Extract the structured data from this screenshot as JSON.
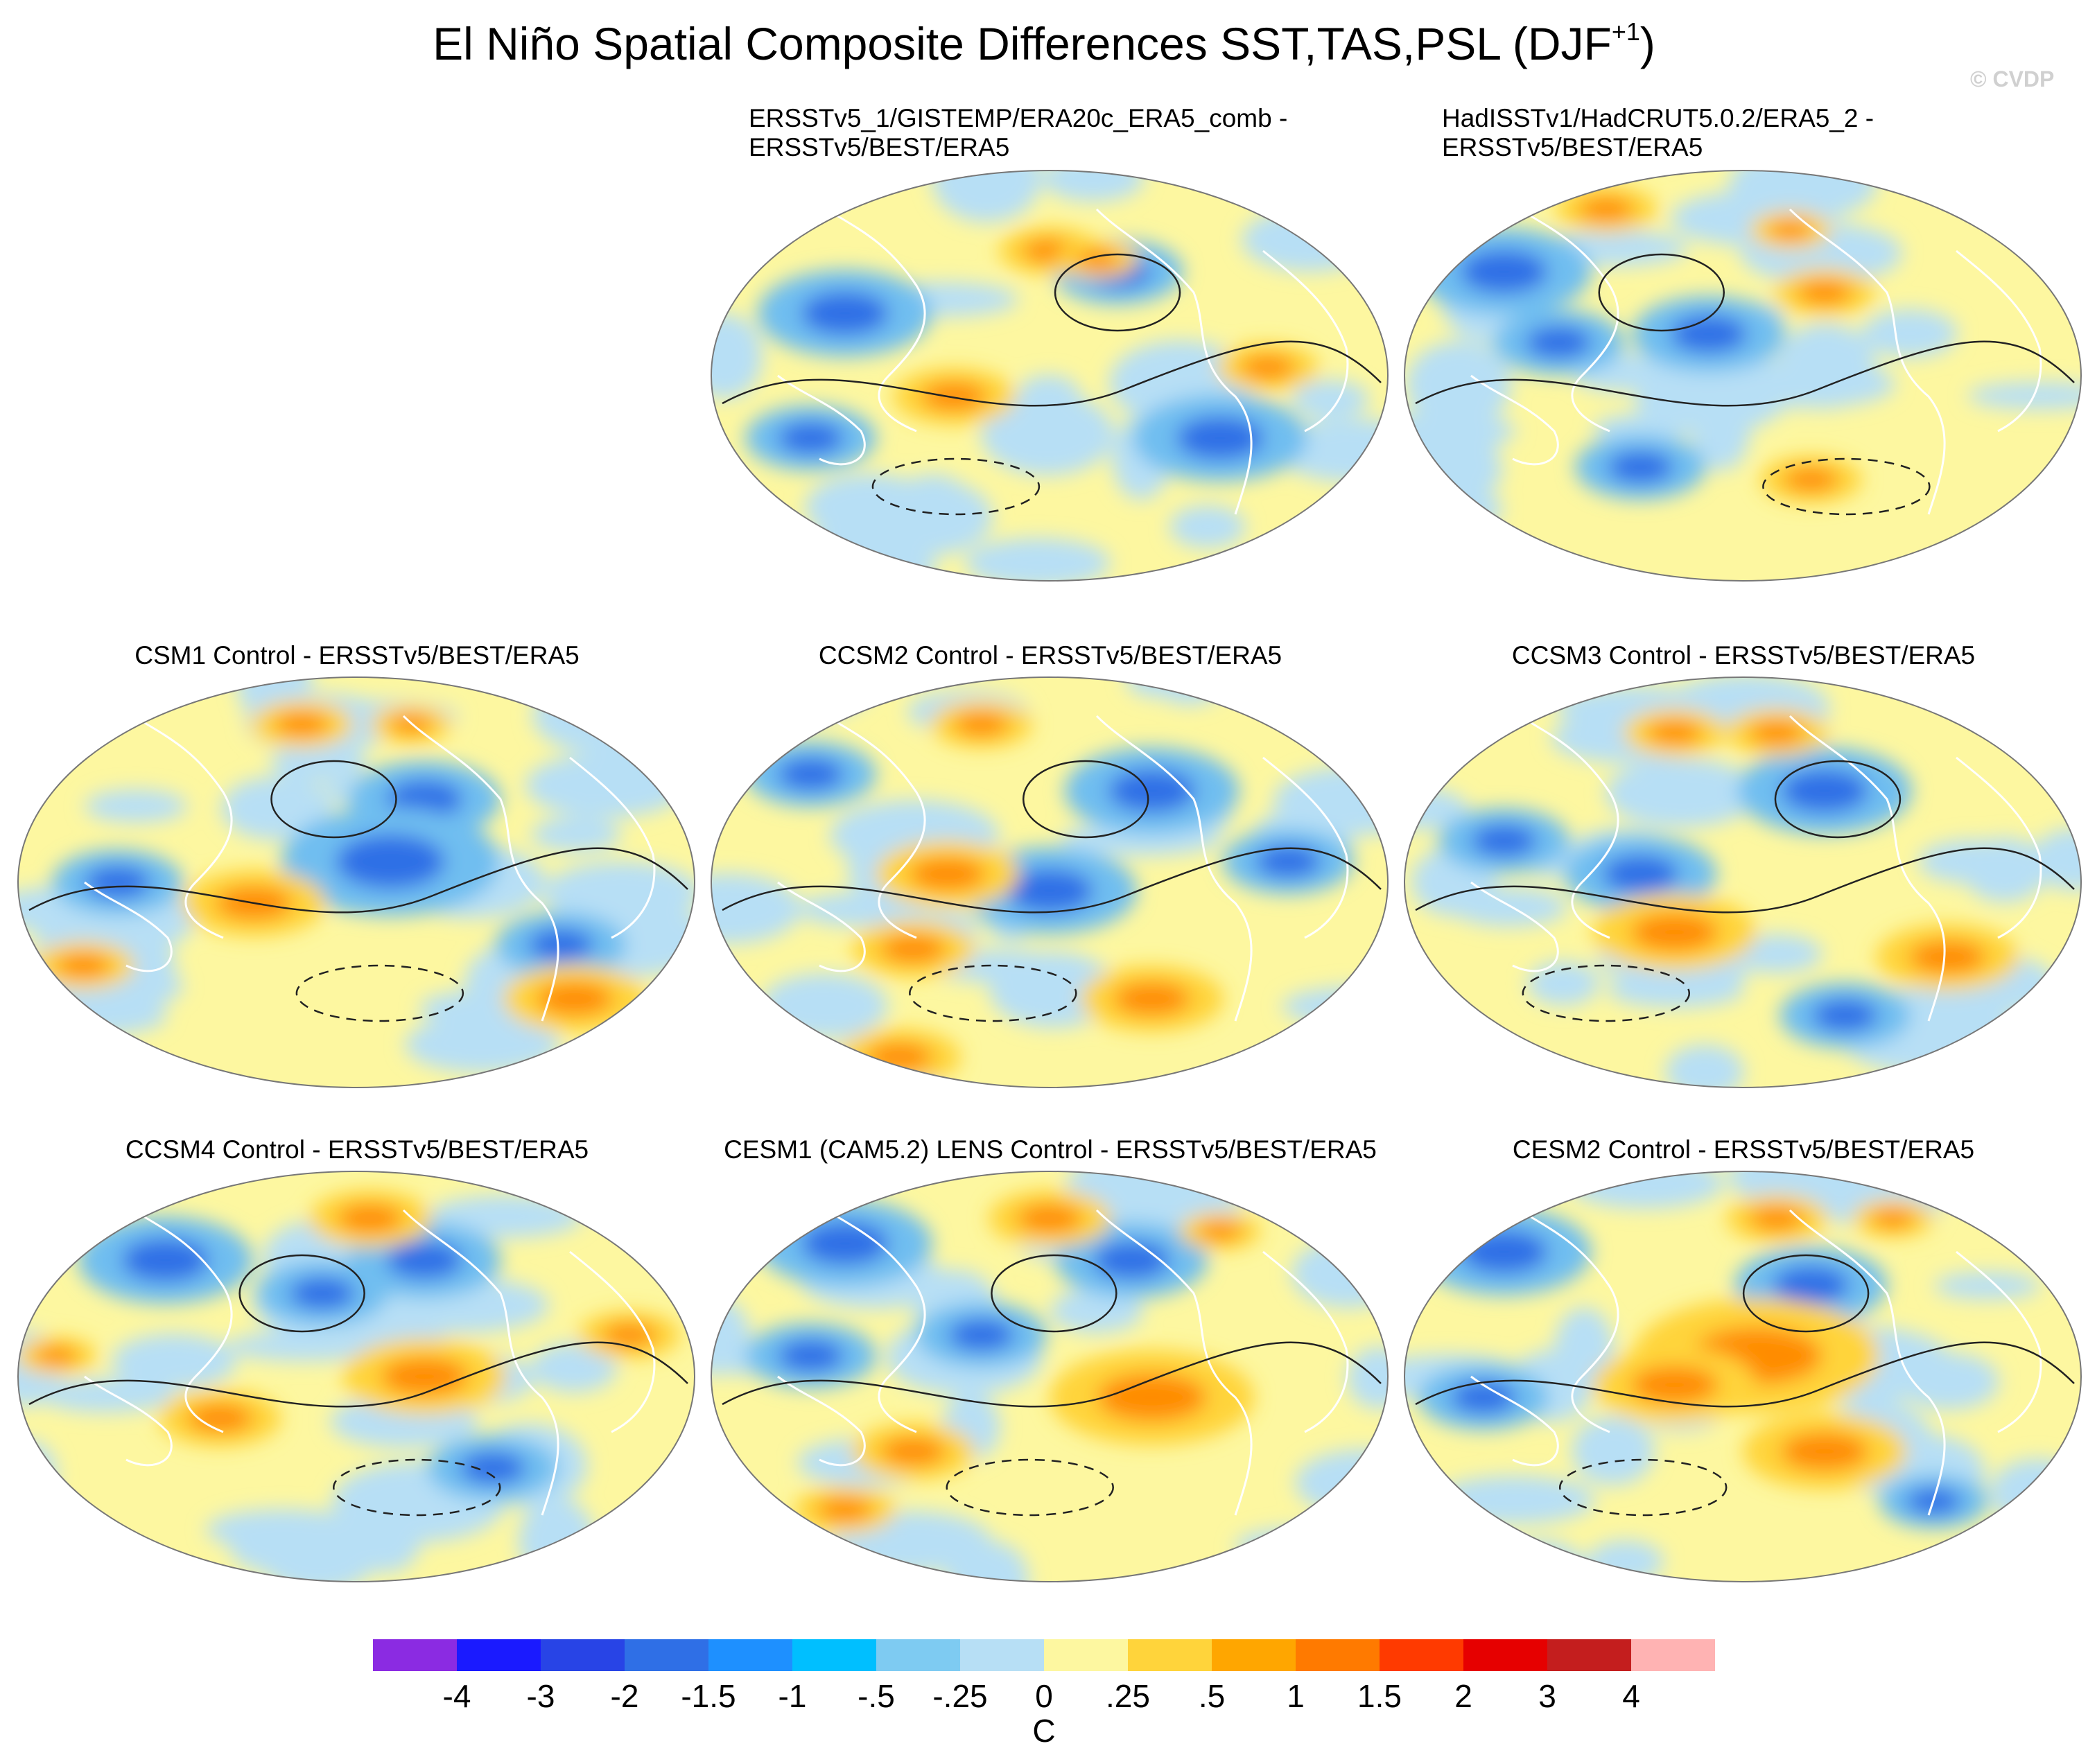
{
  "title": {
    "main": "El Niño Spatial Composite Differences SST,TAS,PSL (DJF",
    "superscript": "+1",
    "close": ")"
  },
  "watermark": "© CVDP",
  "panels": [
    {
      "id": "obs1",
      "title_line1": "ERSSTv5_1/GISTEMP/ERA20c_ERA5_comb -",
      "title_line2": "ERSSTv5/BEST/ERA5",
      "warm_spots": [
        [
          0.5,
          0.2,
          0.05
        ],
        [
          0.57,
          0.22,
          0.04
        ],
        [
          0.36,
          0.55,
          0.06
        ],
        [
          0.82,
          0.48,
          0.05
        ]
      ],
      "cool_spots": [
        [
          0.6,
          0.25,
          0.06
        ],
        [
          0.2,
          0.35,
          0.08
        ],
        [
          0.75,
          0.65,
          0.08
        ],
        [
          0.15,
          0.65,
          0.06
        ]
      ]
    },
    {
      "id": "obs2",
      "title_line1": "HadISSTv1/HadCRUT5.0.2/ERA5_2 -",
      "title_line2": "ERSSTv5/BEST/ERA5",
      "warm_spots": [
        [
          0.3,
          0.1,
          0.05
        ],
        [
          0.57,
          0.15,
          0.04
        ],
        [
          0.62,
          0.3,
          0.05
        ],
        [
          0.6,
          0.75,
          0.05
        ]
      ],
      "cool_spots": [
        [
          0.15,
          0.25,
          0.08
        ],
        [
          0.23,
          0.42,
          0.06
        ],
        [
          0.45,
          0.4,
          0.07
        ],
        [
          0.35,
          0.72,
          0.06
        ]
      ]
    },
    {
      "id": "csm1",
      "title_line1": "CSM1 Control - ERSSTv5/BEST/ERA5",
      "title_line2": "",
      "warm_spots": [
        [
          0.42,
          0.12,
          0.05
        ],
        [
          0.58,
          0.12,
          0.04
        ],
        [
          0.35,
          0.55,
          0.07
        ],
        [
          0.82,
          0.78,
          0.07
        ],
        [
          0.1,
          0.7,
          0.05
        ]
      ],
      "cool_spots": [
        [
          0.6,
          0.3,
          0.07
        ],
        [
          0.55,
          0.45,
          0.1
        ],
        [
          0.15,
          0.5,
          0.06
        ],
        [
          0.8,
          0.65,
          0.06
        ]
      ]
    },
    {
      "id": "ccsm2",
      "title_line1": "CCSM2 Control - ERSSTv5/BEST/ERA5",
      "title_line2": "",
      "warm_spots": [
        [
          0.35,
          0.48,
          0.07
        ],
        [
          0.3,
          0.66,
          0.06
        ],
        [
          0.4,
          0.12,
          0.05
        ],
        [
          0.65,
          0.78,
          0.07
        ],
        [
          0.28,
          0.92,
          0.06
        ]
      ],
      "cool_spots": [
        [
          0.65,
          0.28,
          0.08
        ],
        [
          0.15,
          0.24,
          0.06
        ],
        [
          0.5,
          0.52,
          0.08
        ],
        [
          0.85,
          0.45,
          0.06
        ]
      ]
    },
    {
      "id": "ccsm3",
      "title_line1": "CCSM3 Control - ERSSTv5/BEST/ERA5",
      "title_line2": "",
      "warm_spots": [
        [
          0.4,
          0.14,
          0.05
        ],
        [
          0.55,
          0.14,
          0.05
        ],
        [
          0.4,
          0.62,
          0.08
        ],
        [
          0.8,
          0.68,
          0.07
        ]
      ],
      "cool_spots": [
        [
          0.62,
          0.28,
          0.08
        ],
        [
          0.35,
          0.48,
          0.07
        ],
        [
          0.15,
          0.4,
          0.06
        ],
        [
          0.65,
          0.82,
          0.06
        ]
      ]
    },
    {
      "id": "ccsm4",
      "title_line1": "CCSM4 Control - ERSSTv5/BEST/ERA5",
      "title_line2": "",
      "warm_spots": [
        [
          0.52,
          0.12,
          0.06
        ],
        [
          0.3,
          0.6,
          0.06
        ],
        [
          0.6,
          0.5,
          0.08
        ],
        [
          0.9,
          0.4,
          0.05
        ],
        [
          0.06,
          0.45,
          0.04
        ]
      ],
      "cool_spots": [
        [
          0.6,
          0.22,
          0.07
        ],
        [
          0.22,
          0.22,
          0.08
        ],
        [
          0.45,
          0.3,
          0.06
        ],
        [
          0.7,
          0.72,
          0.06
        ]
      ]
    },
    {
      "id": "cesm1",
      "title_line1": "CESM1 (CAM5.2) LENS Control - ERSSTv5/BEST/ERA5",
      "title_line2": "",
      "warm_spots": [
        [
          0.65,
          0.55,
          0.1
        ],
        [
          0.3,
          0.68,
          0.06
        ],
        [
          0.5,
          0.12,
          0.06
        ],
        [
          0.75,
          0.15,
          0.04
        ],
        [
          0.2,
          0.82,
          0.05
        ]
      ],
      "cool_spots": [
        [
          0.2,
          0.18,
          0.08
        ],
        [
          0.62,
          0.22,
          0.07
        ],
        [
          0.15,
          0.45,
          0.06
        ],
        [
          0.4,
          0.4,
          0.06
        ]
      ]
    },
    {
      "id": "cesm2",
      "title_line1": "CESM2 Control - ERSSTv5/BEST/ERA5",
      "title_line2": "",
      "warm_spots": [
        [
          0.52,
          0.45,
          0.12
        ],
        [
          0.4,
          0.52,
          0.08
        ],
        [
          0.62,
          0.68,
          0.08
        ],
        [
          0.55,
          0.12,
          0.05
        ],
        [
          0.72,
          0.12,
          0.04
        ]
      ],
      "cool_spots": [
        [
          0.15,
          0.2,
          0.08
        ],
        [
          0.6,
          0.28,
          0.07
        ],
        [
          0.12,
          0.55,
          0.06
        ],
        [
          0.78,
          0.8,
          0.05
        ]
      ]
    }
  ],
  "colorbar": {
    "unit": "C",
    "tick_labels": [
      "-4",
      "-3",
      "-2",
      "-1.5",
      "-1",
      "-.5",
      "-.25",
      "0",
      ".25",
      ".5",
      "1",
      "1.5",
      "2",
      "3",
      "4"
    ],
    "colors": [
      "#8b2be2",
      "#1a1aff",
      "#2844e6",
      "#2f6fe6",
      "#1e90ff",
      "#00bfff",
      "#7ecbf2",
      "#b7dff5",
      "#fdf7a0",
      "#ffd43b",
      "#ffa600",
      "#ff7a00",
      "#ff3a00",
      "#e60000",
      "#c41e1e",
      "#ffb3b3"
    ]
  }
}
